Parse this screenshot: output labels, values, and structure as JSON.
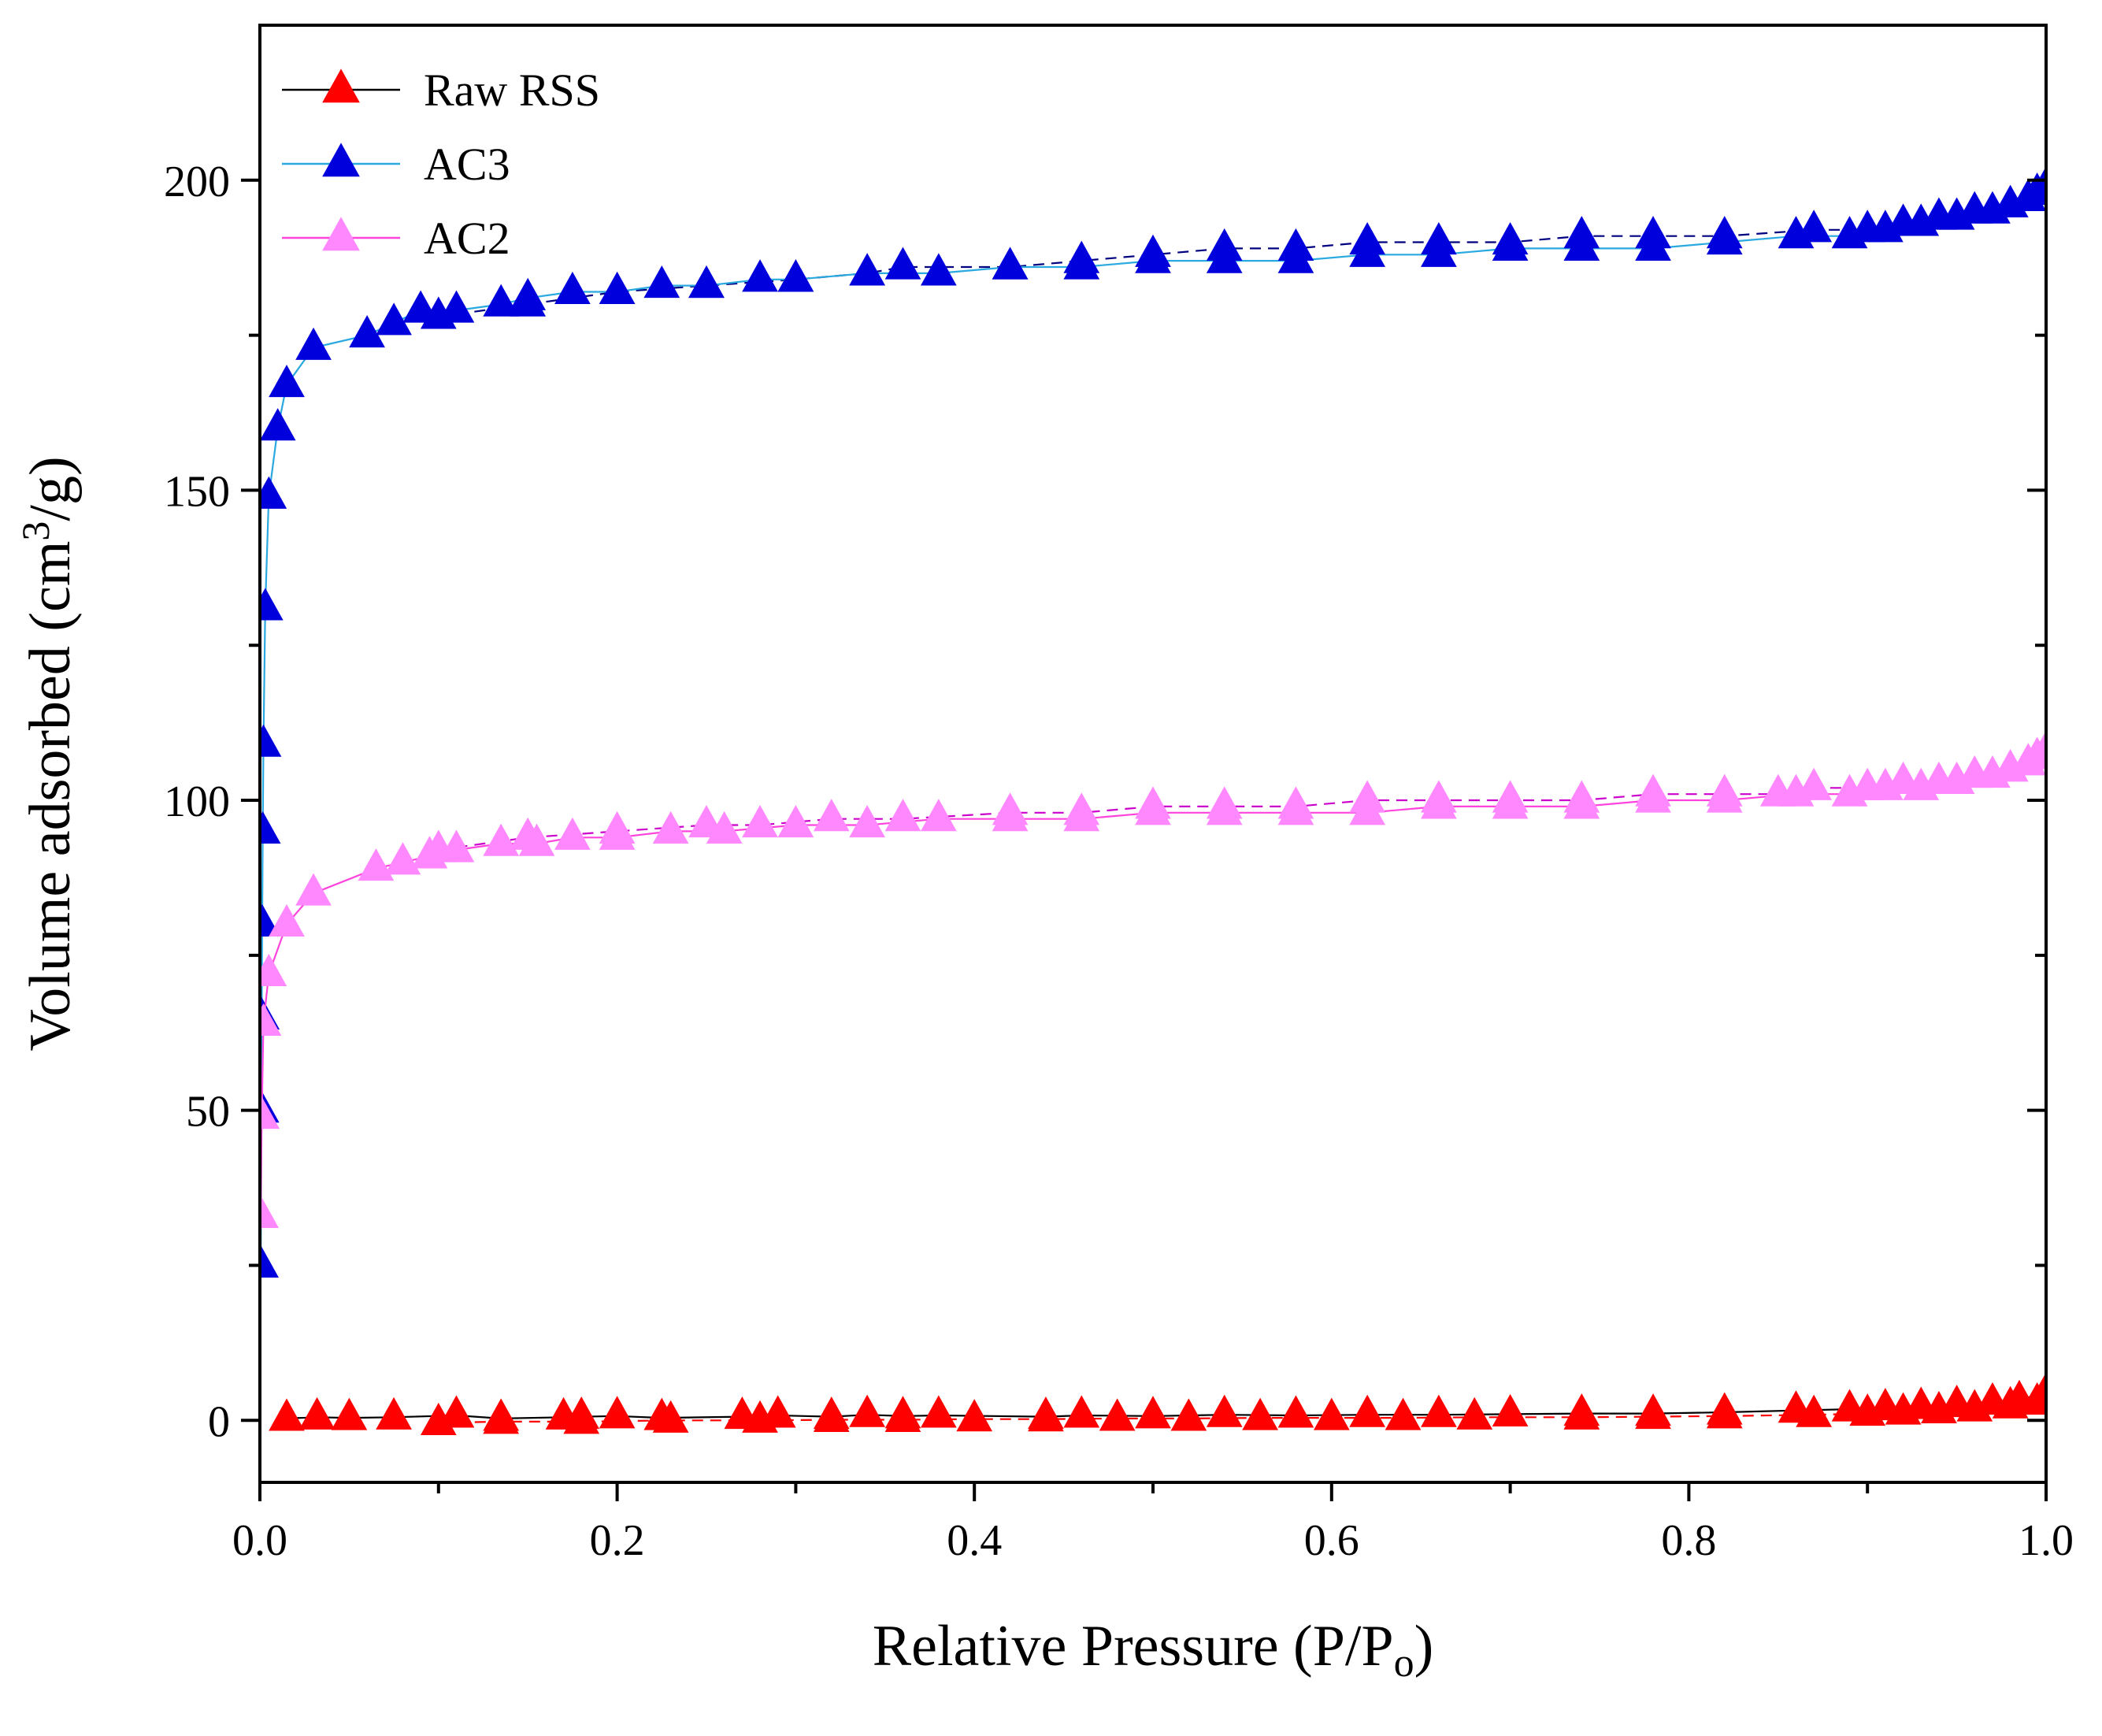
{
  "chart_data": {
    "type": "scatter",
    "title": "",
    "xlabel": {
      "main": "Relative Pressure (P/P",
      "sub": "o",
      "tail": ")"
    },
    "ylabel": {
      "main": "Volume adsorbed (cm",
      "sup": "3",
      "tail": "/g)"
    },
    "xlim": [
      0.0,
      1.0
    ],
    "ylim": [
      -10,
      225
    ],
    "xticks": [
      0.0,
      0.2,
      0.4,
      0.6,
      0.8,
      1.0
    ],
    "xtick_labels": [
      "0.0",
      "0.2",
      "0.4",
      "0.6",
      "0.8",
      "1.0"
    ],
    "yticks": [
      0,
      50,
      100,
      150,
      200
    ],
    "ytick_labels": [
      "0",
      "50",
      "100",
      "150",
      "200"
    ],
    "legend": {
      "position": "top-left",
      "entries": [
        "Raw RSS",
        "AC3",
        "AC2"
      ]
    },
    "series": [
      {
        "name": "Raw RSS",
        "marker_color": "#ff0000",
        "adsorption_line_color": "#000000",
        "desorption_line_color": "#ff0000",
        "adsorption": {
          "x": [
            0.015,
            0.032,
            0.05,
            0.075,
            0.11,
            0.135,
            0.17,
            0.18,
            0.2,
            0.225,
            0.27,
            0.29,
            0.32,
            0.34,
            0.36,
            0.38,
            0.44,
            0.46,
            0.5,
            0.54,
            0.58,
            0.62,
            0.66,
            0.7,
            0.74,
            0.78,
            0.82,
            0.86,
            0.89,
            0.91,
            0.93,
            0.95,
            0.97,
            0.985,
            1.0
          ],
          "y": [
            0.3,
            0.5,
            0.4,
            0.5,
            0.8,
            0.3,
            0.5,
            0.6,
            0.7,
            0.4,
            0.6,
            0.8,
            0.6,
            0.9,
            0.7,
            0.8,
            0.6,
            0.8,
            0.7,
            0.9,
            0.8,
            0.9,
            0.9,
            1.0,
            1.1,
            1.1,
            1.3,
            1.6,
            1.8,
            2.0,
            2.2,
            2.5,
            2.9,
            3.3,
            4.5
          ]
        },
        "desorption": {
          "x": [
            0.1,
            0.135,
            0.18,
            0.23,
            0.28,
            0.32,
            0.36,
            0.4,
            0.44,
            0.48,
            0.52,
            0.56,
            0.6,
            0.64,
            0.68,
            0.74,
            0.78,
            0.82,
            0.87,
            0.9,
            0.92,
            0.94,
            0.96,
            0.98,
            0.995
          ],
          "y": [
            -0.4,
            -0.2,
            -0.2,
            0.0,
            0.0,
            0.1,
            0.1,
            0.2,
            0.2,
            0.3,
            0.3,
            0.4,
            0.4,
            0.4,
            0.5,
            0.5,
            0.6,
            0.7,
            0.9,
            1.1,
            1.3,
            1.5,
            1.8,
            2.3,
            2.9
          ]
        }
      },
      {
        "name": "AC3",
        "marker_color": "#0000dd",
        "adsorption_line_color": "#29a9e0",
        "desorption_line_color": "#000080",
        "adsorption": {
          "x": [
            0.0005,
            0.0008,
            0.001,
            0.0013,
            0.0016,
            0.002,
            0.003,
            0.005,
            0.01,
            0.015,
            0.03,
            0.06,
            0.075,
            0.09,
            0.11,
            0.135,
            0.15,
            0.175,
            0.2,
            0.225,
            0.25,
            0.28,
            0.3,
            0.34,
            0.38,
            0.42,
            0.46,
            0.5,
            0.54,
            0.58,
            0.62,
            0.66,
            0.7,
            0.74,
            0.78,
            0.82,
            0.86,
            0.89,
            0.91,
            0.93,
            0.95,
            0.97,
            0.98,
            0.99,
            1.0
          ],
          "y": [
            25,
            50,
            65,
            80,
            95,
            109,
            131,
            149,
            160,
            167,
            173,
            175,
            177,
            179,
            179,
            180,
            181,
            182,
            182,
            183,
            183,
            184,
            184,
            185,
            185,
            186,
            186,
            187,
            187,
            187,
            188,
            188,
            189,
            189,
            189,
            190,
            191,
            191,
            192,
            193,
            194,
            195,
            196,
            197,
            199
          ]
        },
        "desorption": {
          "x": [
            0.1,
            0.15,
            0.2,
            0.25,
            0.3,
            0.34,
            0.36,
            0.42,
            0.46,
            0.5,
            0.54,
            0.58,
            0.62,
            0.66,
            0.7,
            0.74,
            0.78,
            0.82,
            0.87,
            0.9,
            0.92,
            0.94,
            0.96,
            0.98,
            0.995
          ],
          "y": [
            178,
            180,
            182,
            183,
            184,
            185,
            186,
            186,
            187,
            188,
            189,
            189,
            190,
            190,
            190,
            191,
            191,
            191,
            192,
            192,
            193,
            194,
            195,
            196,
            198
          ]
        }
      },
      {
        "name": "AC2",
        "marker_color": "#ff88ff",
        "adsorption_line_color": "#ff44dd",
        "desorption_line_color": "#cc00cc",
        "adsorption": {
          "x": [
            0.0005,
            0.001,
            0.002,
            0.005,
            0.015,
            0.03,
            0.065,
            0.08,
            0.095,
            0.11,
            0.135,
            0.155,
            0.175,
            0.2,
            0.23,
            0.26,
            0.3,
            0.34,
            0.38,
            0.42,
            0.46,
            0.5,
            0.54,
            0.58,
            0.62,
            0.66,
            0.7,
            0.74,
            0.78,
            0.82,
            0.86,
            0.89,
            0.91,
            0.93,
            0.95,
            0.97,
            0.98,
            0.99,
            1.0
          ],
          "y": [
            33,
            49,
            64,
            72,
            80,
            85,
            89,
            90,
            91,
            92,
            93,
            93,
            94,
            94,
            95,
            95,
            96,
            96,
            97,
            97,
            97,
            98,
            98,
            98,
            98,
            99,
            99,
            99,
            100,
            100,
            101,
            101,
            102,
            102,
            103,
            104,
            105,
            106,
            108
          ]
        },
        "desorption": {
          "x": [
            0.1,
            0.15,
            0.2,
            0.25,
            0.28,
            0.32,
            0.36,
            0.42,
            0.46,
            0.5,
            0.54,
            0.58,
            0.62,
            0.66,
            0.7,
            0.74,
            0.78,
            0.82,
            0.85,
            0.87,
            0.9,
            0.92,
            0.94,
            0.96,
            0.98,
            0.995
          ],
          "y": [
            92,
            94,
            95,
            96,
            96,
            97,
            97,
            98,
            98,
            99,
            99,
            99,
            100,
            100,
            100,
            100,
            101,
            101,
            101,
            102,
            102,
            103,
            103,
            104,
            105,
            107
          ]
        }
      }
    ]
  }
}
